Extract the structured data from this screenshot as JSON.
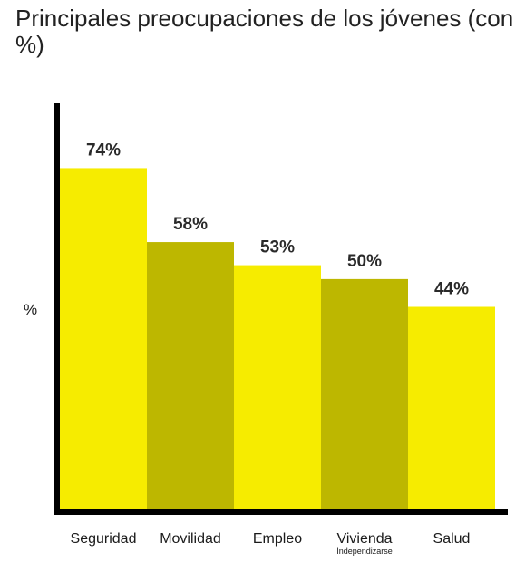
{
  "title": "Principales preocupaciones de los jóvenes (con %)",
  "chart_data": {
    "type": "bar",
    "title": "Principales preocupaciones de los jóvenes (con %)",
    "ylabel": "%",
    "xlabel": "",
    "categories": [
      "Seguridad",
      "Movilidad",
      "Empleo",
      "Vivienda",
      "Salud"
    ],
    "category_sublabels": [
      "",
      "",
      "",
      "Independizarse",
      ""
    ],
    "values": [
      74,
      58,
      53,
      50,
      44
    ],
    "value_labels": [
      "74%",
      "58%",
      "53%",
      "50%",
      "44%"
    ],
    "ylim": [
      0,
      88
    ],
    "grid": false,
    "legend": "none",
    "colors": [
      "#f6ec00",
      "#bdb700",
      "#f6ec00",
      "#bdb700",
      "#f6ec00"
    ]
  }
}
